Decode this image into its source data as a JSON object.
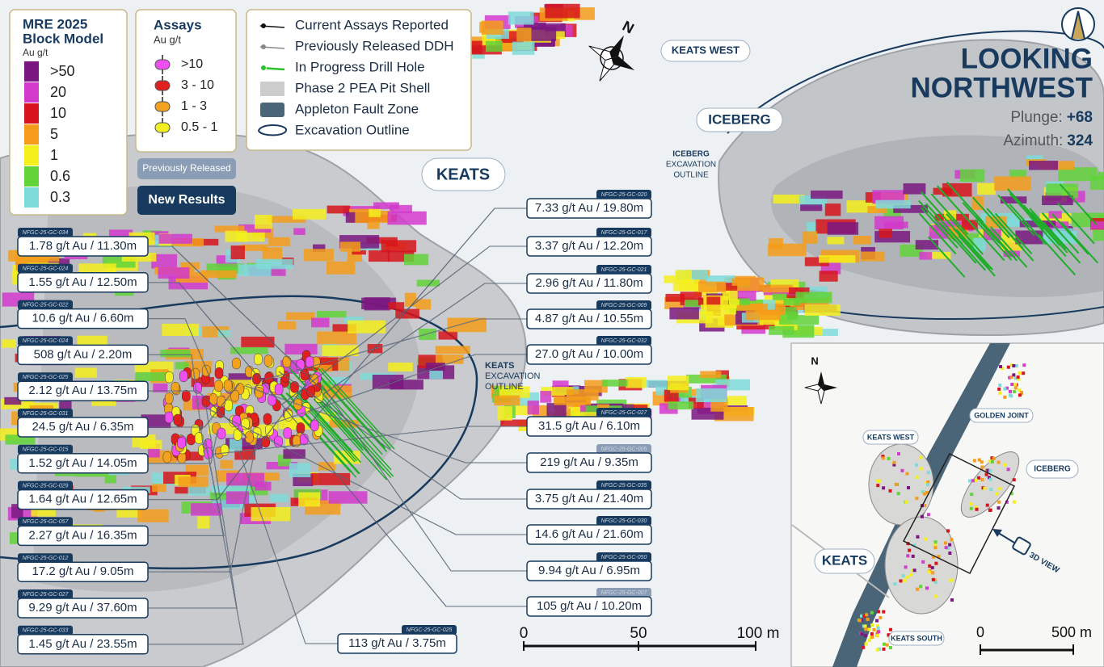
{
  "legend_block_model": {
    "title_lines": [
      "MRE 2025",
      "Block Model"
    ],
    "unit": "Au g/t",
    "items": [
      {
        "label": ">50",
        "color": "#7a1780"
      },
      {
        "label": "20",
        "color": "#d23acb"
      },
      {
        "label": "10",
        "color": "#d7141b"
      },
      {
        "label": "5",
        "color": "#f59d1a"
      },
      {
        "label": "1",
        "color": "#f5ef1c"
      },
      {
        "label": "0.6",
        "color": "#62d43a"
      },
      {
        "label": "0.3",
        "color": "#7fdbd9"
      }
    ]
  },
  "legend_assays": {
    "title": "Assays",
    "unit": "Au g/t",
    "items": [
      {
        "label": ">10",
        "color": "#f04ef0"
      },
      {
        "label": "3 - 10",
        "color": "#e01f1f"
      },
      {
        "label": "1 - 3",
        "color": "#f2a21f"
      },
      {
        "label": "0.5 - 1",
        "color": "#f2ef22"
      }
    ]
  },
  "legend_symbols": [
    "Current Assays Reported",
    "Previously Released DDH",
    "In Progress Drill Hole",
    "Phase 2 PEA Pit Shell",
    "Appleton Fault Zone",
    "Excavation Outline"
  ],
  "buttons": {
    "previously_released": "Previously Released",
    "new_results": "New Results"
  },
  "view": {
    "lines": [
      "LOOKING",
      "NORTHWEST"
    ],
    "plunge_label": "Plunge:",
    "plunge": "+68",
    "azimuth_label": "Azimuth:",
    "azimuth": "324"
  },
  "compass": "N",
  "labels": {
    "keats": "KEATS",
    "keats_west": "KEATS WEST",
    "iceberg": "ICEBERG",
    "iceberg_outline": [
      "ICEBERG",
      "EXCAVATION",
      "OUTLINE"
    ],
    "keats_outline": [
      "KEATS",
      "EXCAVATION",
      "OUTLINE"
    ]
  },
  "callouts_left": [
    {
      "hole": "NFGC-25-GC-034",
      "result": "1.78 g/t Au / 11.30m",
      "tab_color": "#173a5e"
    },
    {
      "hole": "NFGC-25-GC-024",
      "result": "1.55 g/t Au / 12.50m",
      "tab_color": "#173a5e"
    },
    {
      "hole": "NFGC-25-GC-022",
      "result": "10.6 g/t Au / 6.60m",
      "tab_color": "#173a5e"
    },
    {
      "hole": "NFGC-25-GC-024",
      "result": "508 g/t Au / 2.20m",
      "tab_color": "#173a5e"
    },
    {
      "hole": "NFGC-25-GC-025",
      "result": "2.12 g/t Au / 13.75m",
      "tab_color": "#173a5e"
    },
    {
      "hole": "NFGC-25-GC-031",
      "result": "24.5 g/t Au / 6.35m",
      "tab_color": "#173a5e"
    },
    {
      "hole": "NFGC-25-GC-015",
      "result": "1.52 g/t Au / 14.05m",
      "tab_color": "#173a5e"
    },
    {
      "hole": "NFGC-25-GC-029",
      "result": "1.64 g/t Au / 12.65m",
      "tab_color": "#173a5e"
    },
    {
      "hole": "NFGC-25-GC-057",
      "result": "2.27 g/t Au / 16.35m",
      "tab_color": "#173a5e"
    },
    {
      "hole": "NFGC-25-GC-012",
      "result": "17.2 g/t Au / 9.05m",
      "tab_color": "#173a5e"
    },
    {
      "hole": "NFGC-25-GC-027",
      "result": "9.29 g/t Au / 37.60m",
      "tab_color": "#173a5e"
    },
    {
      "hole": "NFGC-25-GC-033",
      "result": "1.45 g/t Au / 23.55m",
      "tab_color": "#173a5e"
    }
  ],
  "callouts_right": [
    {
      "hole": "NFGC-25-GC-020",
      "result": "7.33 g/t Au / 19.80m",
      "tab_color": "#173a5e"
    },
    {
      "hole": "NFGC-25-GC-017",
      "result": "3.37 g/t Au / 12.20m",
      "tab_color": "#173a5e"
    },
    {
      "hole": "NFGC-25-GC-021",
      "result": "2.96 g/t Au / 11.80m",
      "tab_color": "#173a5e"
    },
    {
      "hole": "NFGC-25-GC-009",
      "result": "4.87 g/t Au / 10.55m",
      "tab_color": "#173a5e"
    },
    {
      "hole": "NFGC-25-GC-032",
      "result": "27.0 g/t Au / 10.00m",
      "tab_color": "#173a5e"
    },
    {
      "hole": "NFGC-25-GC-027",
      "result": "31.5 g/t Au / 6.10m",
      "tab_color": "#173a5e"
    },
    {
      "hole": "NFGC-25-GC-005",
      "result": "219 g/t Au / 9.35m",
      "tab_color": "#8a9db5"
    },
    {
      "hole": "NFGC-25-GC-035",
      "result": "3.75 g/t Au / 21.40m",
      "tab_color": "#173a5e"
    },
    {
      "hole": "NFGC-25-GC-030",
      "result": "14.6 g/t Au / 21.60m",
      "tab_color": "#173a5e"
    },
    {
      "hole": "NFGC-25-GC-050",
      "result": "9.94 g/t Au / 6.95m",
      "tab_color": "#173a5e"
    },
    {
      "hole": "NFGC-25-GC-007",
      "result": "105 g/t Au / 10.20m",
      "tab_color": "#8a9db5"
    }
  ],
  "callouts_bottom": [
    {
      "hole": "NFGC-25-GC-025",
      "result": "113 g/t Au / 3.75m",
      "tab_color": "#173a5e"
    }
  ],
  "scale_bar": [
    "0",
    "50",
    "100 m"
  ],
  "inset": {
    "compass": "N",
    "labels": {
      "keats_west": "KEATS WEST",
      "golden_joint": "GOLDEN JOINT",
      "iceberg": "ICEBERG",
      "keats": "KEATS",
      "view": "3D VIEW",
      "keats_south": "KEATS SOUTH"
    },
    "scale_bar": [
      "0",
      "500 m"
    ]
  }
}
